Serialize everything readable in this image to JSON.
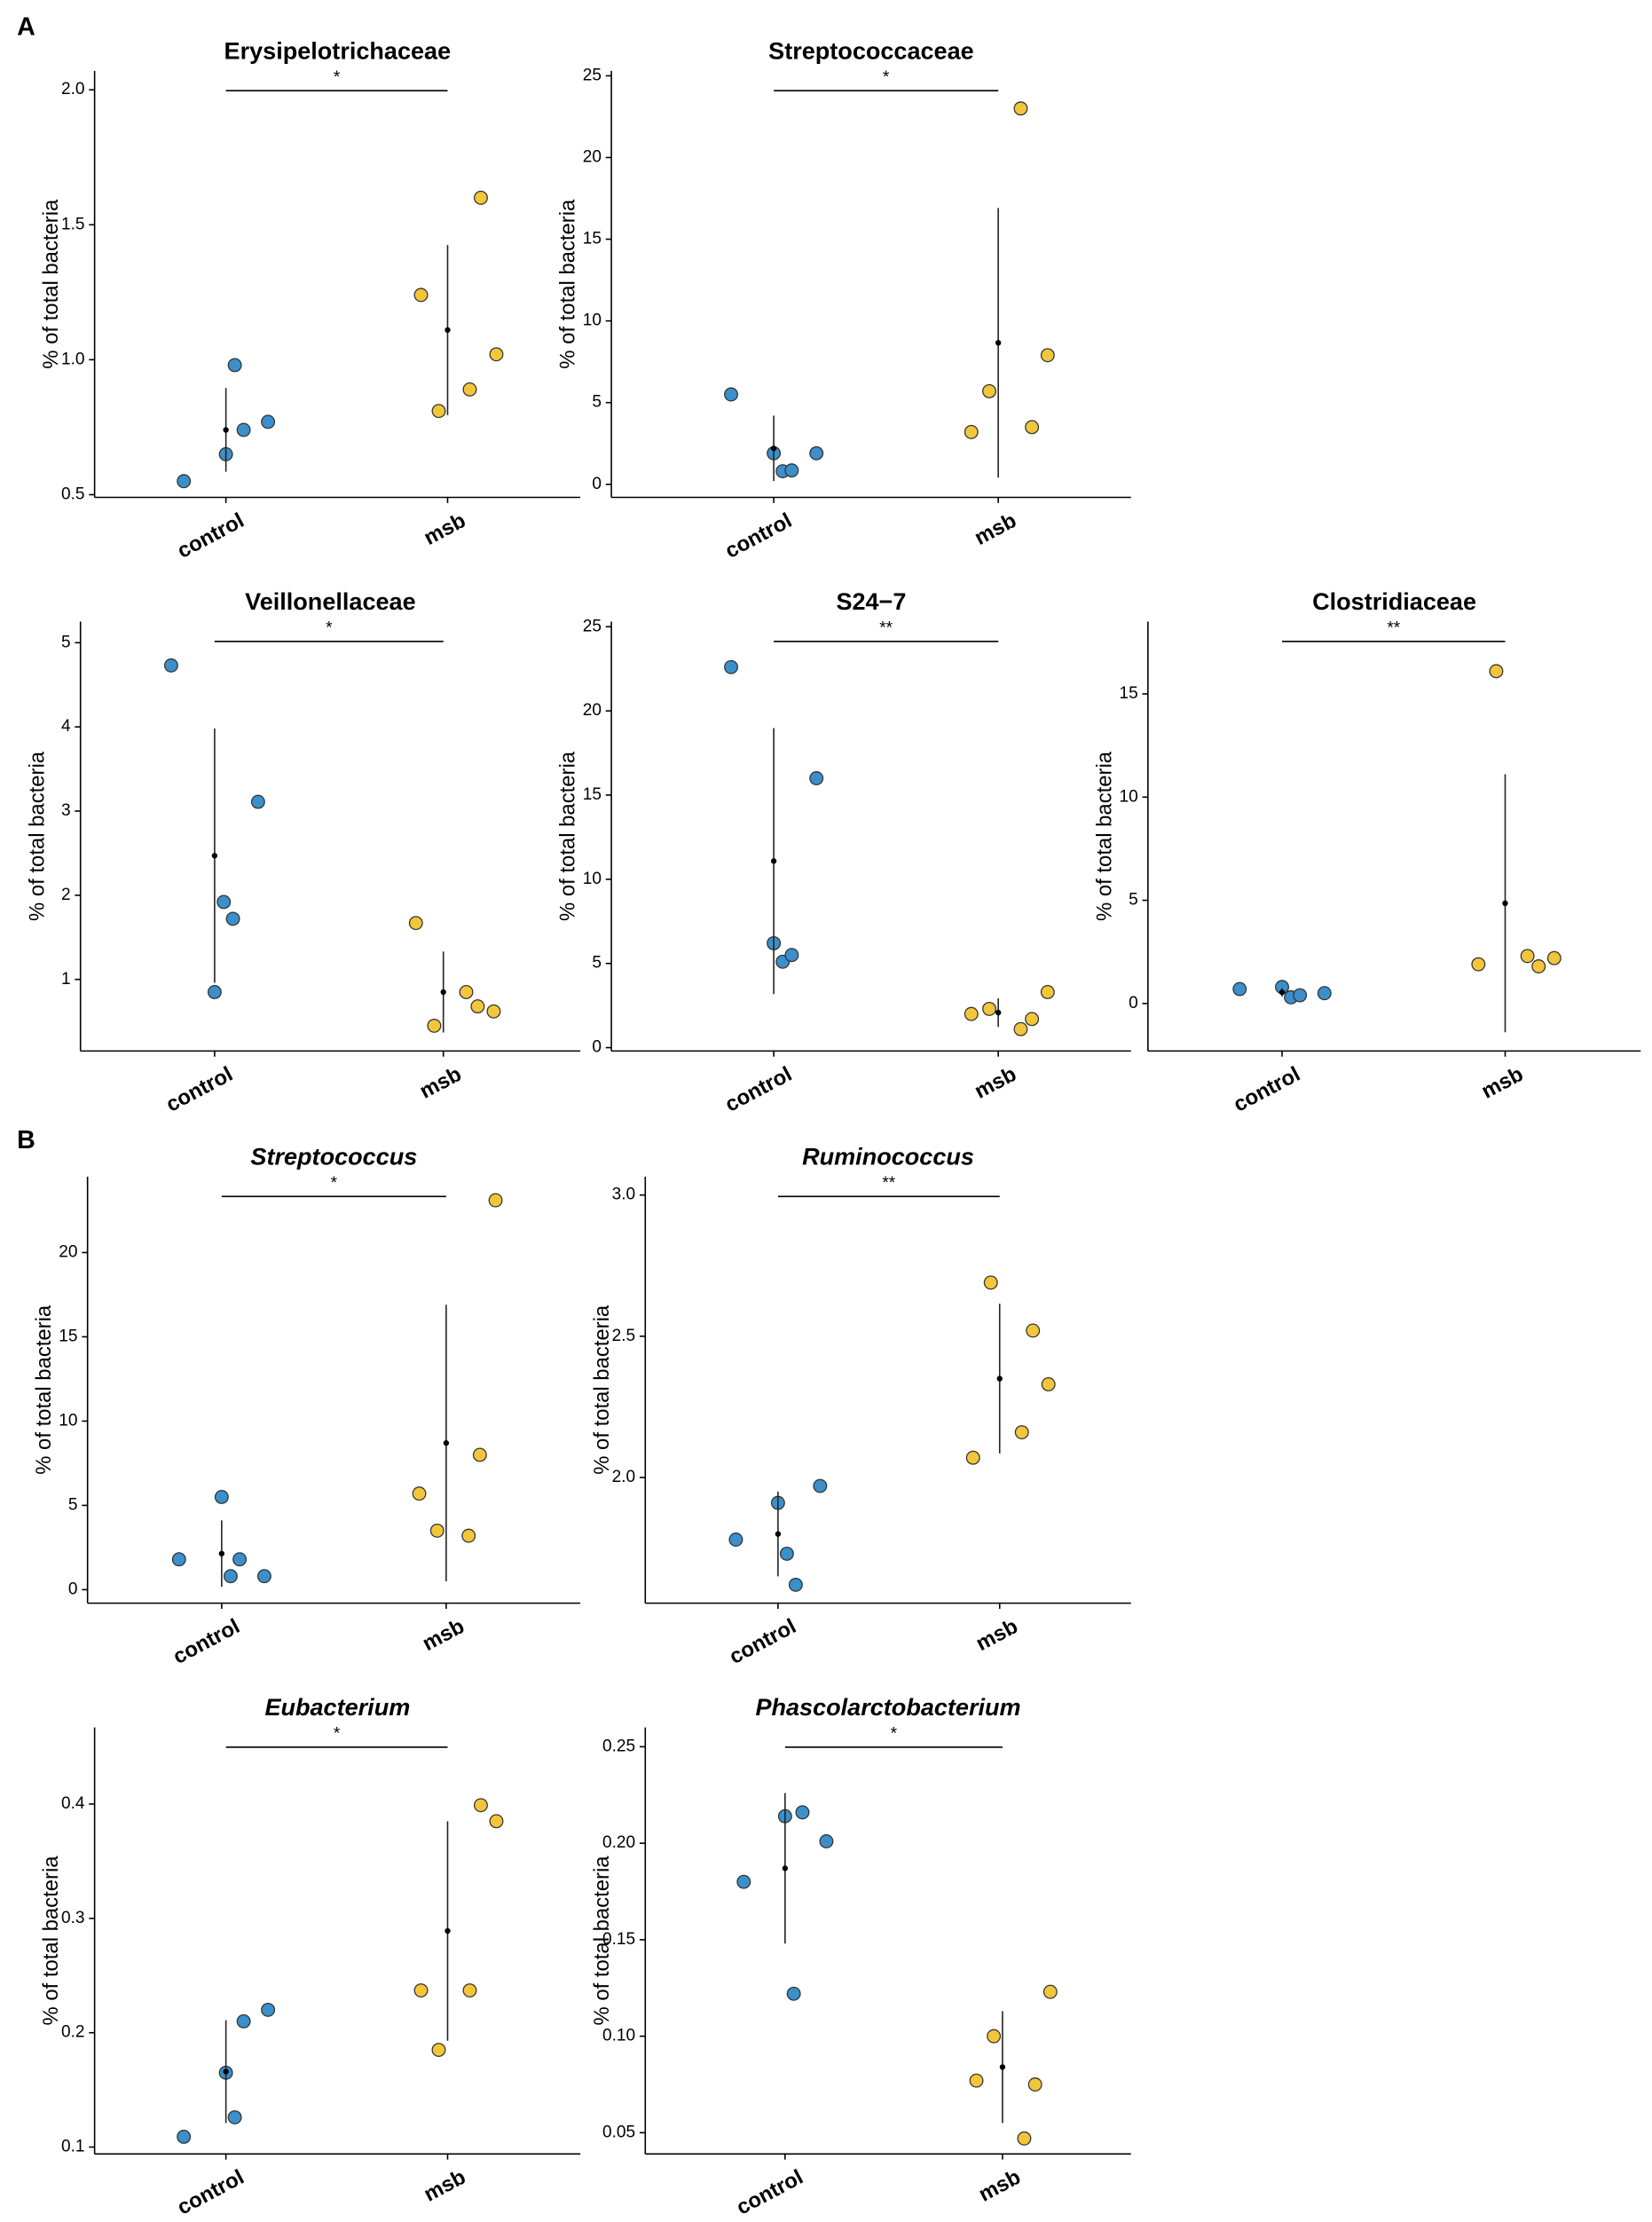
{
  "panel_labels": [
    "A",
    "B"
  ],
  "chart_data": [
    {
      "type": "strip",
      "title": "Erysipelotrichaceae",
      "ylabel": "% of total bacteria",
      "categories": [
        "control",
        "msb"
      ],
      "significance": "*",
      "groups": [
        {
          "color": "#3b8fca",
          "values": [
            0.55,
            0.98,
            0.74,
            0.65,
            0.77
          ],
          "mean": 0.74,
          "sd": 0.155
        },
        {
          "color": "#f2c63a",
          "values": [
            1.24,
            0.89,
            1.6,
            0.81,
            1.02
          ],
          "mean": 1.11,
          "sd": 0.315
        }
      ],
      "ylim": [
        0.49,
        2.07
      ],
      "yticks": [
        0.5,
        {
          "value": 1,
          "label": "1.0"
        },
        1.5,
        {
          "value": 2,
          "label": "2.0"
        }
      ]
    },
    {
      "type": "strip",
      "title": "Streptococcaceae",
      "ylabel": "% of total bacteria",
      "categories": [
        "control",
        "msb"
      ],
      "significance": "*",
      "groups": [
        {
          "color": "#3b8fca",
          "values": [
            5.5,
            0.8,
            0.85,
            1.9,
            1.9
          ],
          "mean": 2.2,
          "sd": 2.0
        },
        {
          "color": "#f2c63a",
          "values": [
            3.2,
            23.0,
            3.5,
            5.7,
            7.9
          ],
          "mean": 8.66,
          "sd": 8.25
        }
      ],
      "ylim": [
        -0.8,
        25.3
      ],
      "yticks": [
        0,
        5,
        10,
        15,
        20,
        25
      ]
    },
    {
      "type": "strip",
      "title": "Veillonellaceae",
      "ylabel": "% of total bacteria",
      "categories": [
        "control",
        "msb"
      ],
      "significance": "*",
      "groups": [
        {
          "color": "#3b8fca",
          "values": [
            4.73,
            1.92,
            1.72,
            0.85,
            3.11
          ],
          "mean": 2.47,
          "sd": 1.51
        },
        {
          "color": "#f2c63a",
          "values": [
            1.67,
            0.85,
            0.68,
            0.45,
            0.62
          ],
          "mean": 0.85,
          "sd": 0.48
        }
      ],
      "ylim": [
        0.15,
        5.25
      ],
      "yticks": [
        1,
        2,
        3,
        4,
        5
      ]
    },
    {
      "type": "strip",
      "title": "S24−7",
      "ylabel": "% of total bacteria",
      "categories": [
        "control",
        "msb"
      ],
      "significance": "**",
      "groups": [
        {
          "color": "#3b8fca",
          "values": [
            22.6,
            5.1,
            5.5,
            6.2,
            16.0
          ],
          "mean": 11.08,
          "sd": 7.9
        },
        {
          "color": "#f2c63a",
          "values": [
            2.0,
            1.1,
            1.7,
            2.3,
            3.3
          ],
          "mean": 2.08,
          "sd": 0.85
        }
      ],
      "ylim": [
        -0.2,
        25.3
      ],
      "yticks": [
        0,
        5,
        10,
        15,
        20,
        25
      ]
    },
    {
      "type": "strip",
      "title": "Clostridiaceae",
      "ylabel": "% of total bacteria",
      "categories": [
        "control",
        "msb"
      ],
      "significance": "**",
      "groups": [
        {
          "color": "#3b8fca",
          "values": [
            0.7,
            0.3,
            0.4,
            0.8,
            0.5
          ],
          "mean": 0.54,
          "sd": 0.2
        },
        {
          "color": "#f2c63a",
          "values": [
            1.9,
            2.3,
            1.8,
            16.1,
            2.2
          ],
          "mean": 4.86,
          "sd": 6.25
        }
      ],
      "ylim": [
        -2.3,
        18.5
      ],
      "yticks": [
        0,
        5,
        10,
        15
      ]
    },
    {
      "type": "strip",
      "title": "Streptococcus",
      "title_italic": true,
      "ylabel": "% of total bacteria",
      "categories": [
        "control",
        "msb"
      ],
      "significance": "*",
      "groups": [
        {
          "color": "#3b8fca",
          "values": [
            1.8,
            0.8,
            1.8,
            5.5,
            0.8
          ],
          "mean": 2.14,
          "sd": 1.97
        },
        {
          "color": "#f2c63a",
          "values": [
            5.7,
            3.2,
            8.0,
            3.5,
            23.1
          ],
          "mean": 8.7,
          "sd": 8.2
        }
      ],
      "ylim": [
        -0.8,
        24.5
      ],
      "yticks": [
        0,
        5,
        10,
        15,
        20
      ]
    },
    {
      "type": "strip",
      "title": "Ruminococcus",
      "title_italic": true,
      "ylabel": "% of total bacteria",
      "categories": [
        "control",
        "msb"
      ],
      "significance": "**",
      "groups": [
        {
          "color": "#3b8fca",
          "values": [
            1.78,
            1.73,
            1.62,
            1.91,
            1.97
          ],
          "mean": 1.8,
          "sd": 0.15
        },
        {
          "color": "#f2c63a",
          "values": [
            2.07,
            2.16,
            2.52,
            2.69,
            2.33
          ],
          "mean": 2.35,
          "sd": 0.265
        }
      ],
      "ylim": [
        1.555,
        3.065
      ],
      "yticks": [
        {
          "value": 2,
          "label": "2.0"
        },
        2.5,
        {
          "value": 3,
          "label": "3.0"
        }
      ]
    },
    {
      "type": "strip",
      "title": "Eubacterium",
      "title_italic": true,
      "ylabel": "% of total bacteria",
      "categories": [
        "control",
        "msb"
      ],
      "significance": "*",
      "groups": [
        {
          "color": "#3b8fca",
          "values": [
            0.109,
            0.126,
            0.21,
            0.165,
            0.22
          ],
          "mean": 0.166,
          "sd": 0.045
        },
        {
          "color": "#f2c63a",
          "values": [
            0.237,
            0.237,
            0.399,
            0.185,
            0.385
          ],
          "mean": 0.289,
          "sd": 0.096
        }
      ],
      "ylim": [
        0.094,
        0.467
      ],
      "yticks": [
        0.1,
        0.2,
        0.3,
        0.4
      ]
    },
    {
      "type": "strip",
      "title": "Phascolarctobacterium",
      "title_italic": true,
      "ylabel": "% of total bacteria",
      "categories": [
        "control",
        "msb"
      ],
      "significance": "*",
      "groups": [
        {
          "color": "#3b8fca",
          "values": [
            0.18,
            0.122,
            0.216,
            0.214,
            0.201
          ],
          "mean": 0.187,
          "sd": 0.039
        },
        {
          "color": "#f2c63a",
          "values": [
            0.077,
            0.047,
            0.075,
            0.1,
            0.123
          ],
          "mean": 0.084,
          "sd": 0.029
        }
      ],
      "ylim": [
        0.039,
        0.26
      ],
      "yticks": [
        0.05,
        {
          "value": 0.1,
          "label": "0.10"
        },
        0.15,
        {
          "value": 0.2,
          "label": "0.20"
        },
        0.25
      ]
    }
  ]
}
